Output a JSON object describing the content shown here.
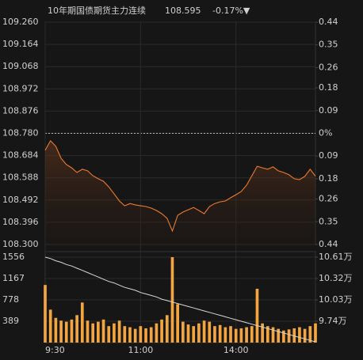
{
  "chart_data": [
    {
      "type": "line",
      "title": "10年期国债期货主力连续",
      "last_price": 108.595,
      "change": {
        "value": -0.17,
        "label": "-0.17%▼"
      },
      "color": "#ee7a2e",
      "up_color": "#e8383d",
      "down_color": "#27b34a",
      "grid": true,
      "values": [
        108.707,
        108.748,
        108.724,
        108.672,
        108.645,
        108.631,
        108.611,
        108.625,
        108.618,
        108.597,
        108.584,
        108.573,
        108.549,
        108.519,
        108.488,
        108.467,
        108.477,
        108.471,
        108.467,
        108.464,
        108.457,
        108.447,
        108.433,
        108.413,
        108.358,
        108.426,
        108.44,
        108.45,
        108.46,
        108.447,
        108.433,
        108.464,
        108.477,
        108.484,
        108.488,
        108.502,
        108.515,
        108.529,
        108.556,
        108.597,
        108.638,
        108.631,
        108.625,
        108.635,
        108.618,
        108.611,
        108.601,
        108.584,
        108.58,
        108.594,
        108.625,
        108.595
      ],
      "ylim": [
        108.3,
        109.26
      ],
      "yticks": [
        {
          "value": 109.26,
          "label": "109.260"
        },
        109.164,
        109.068,
        108.972,
        108.876,
        {
          "value": 108.78,
          "label": "108.780"
        },
        108.684,
        108.588,
        108.492,
        108.396,
        {
          "value": 108.3,
          "label": "108.300"
        }
      ],
      "y2lim": [
        -0.44,
        0.44
      ],
      "y2ticks": [
        0.44,
        0.35,
        0.26,
        0.18,
        0.09,
        {
          "value": 0,
          "label": "0%"
        },
        {
          "value": -0.09,
          "label": "0.09"
        },
        {
          "value": -0.18,
          "label": "0.18"
        },
        {
          "value": -0.26,
          "label": "0.26"
        },
        {
          "value": -0.35,
          "label": "0.35"
        },
        {
          "value": -0.44,
          "label": "0.44"
        }
      ]
    },
    {
      "type": "bar",
      "grid": true,
      "categories": [
        "9:30",
        null,
        null,
        null,
        null,
        null,
        null,
        null,
        null,
        null,
        null,
        null,
        null,
        null,
        null,
        null,
        null,
        null,
        "11:00",
        null,
        null,
        null,
        null,
        null,
        null,
        null,
        null,
        null,
        null,
        null,
        null,
        null,
        null,
        null,
        null,
        null,
        "14:00",
        null,
        null,
        null,
        null,
        null,
        null,
        null,
        null,
        null,
        null,
        null,
        null,
        null,
        null,
        null
      ],
      "series": [
        {
          "type": "bar",
          "color": "#f2a541",
          "values": [
            1050,
            600,
            450,
            400,
            380,
            420,
            500,
            730,
            400,
            350,
            380,
            420,
            300,
            350,
            400,
            300,
            280,
            250,
            300,
            260,
            280,
            350,
            420,
            500,
            1556,
            700,
            380,
            330,
            300,
            350,
            400,
            380,
            300,
            320,
            280,
            300,
            250,
            260,
            280,
            300,
            980,
            350,
            300,
            280,
            250,
            220,
            240,
            260,
            280,
            250,
            300,
            350
          ]
        },
        {
          "type": "line",
          "axis": "y2",
          "color": "#d8d8d8",
          "values": [
            10.61,
            10.59,
            10.56,
            10.54,
            10.51,
            10.49,
            10.46,
            10.43,
            10.4,
            10.37,
            10.34,
            10.31,
            10.28,
            10.26,
            10.23,
            10.2,
            10.18,
            10.16,
            10.13,
            10.11,
            10.09,
            10.07,
            10.04,
            10.02,
            10.0,
            9.98,
            9.96,
            9.94,
            9.92,
            9.9,
            9.88,
            9.86,
            9.84,
            9.82,
            9.8,
            9.78,
            9.76,
            9.74,
            9.72,
            9.7,
            9.68,
            9.66,
            9.64,
            9.62,
            9.6,
            9.58,
            9.56,
            9.54,
            9.52,
            9.5,
            9.48,
            9.46
          ]
        }
      ],
      "ylim": [
        0,
        1657
      ],
      "yticks": [
        389,
        778,
        1167,
        1556
      ],
      "y2lim": [
        9.45,
        10.685
      ],
      "y2ticks": [
        {
          "value": 10.61,
          "label": "10.61万"
        },
        {
          "value": 10.32,
          "label": "10.32万"
        },
        {
          "value": 10.03,
          "label": "10.03万"
        },
        {
          "value": 9.74,
          "label": "9.74万"
        }
      ]
    }
  ]
}
